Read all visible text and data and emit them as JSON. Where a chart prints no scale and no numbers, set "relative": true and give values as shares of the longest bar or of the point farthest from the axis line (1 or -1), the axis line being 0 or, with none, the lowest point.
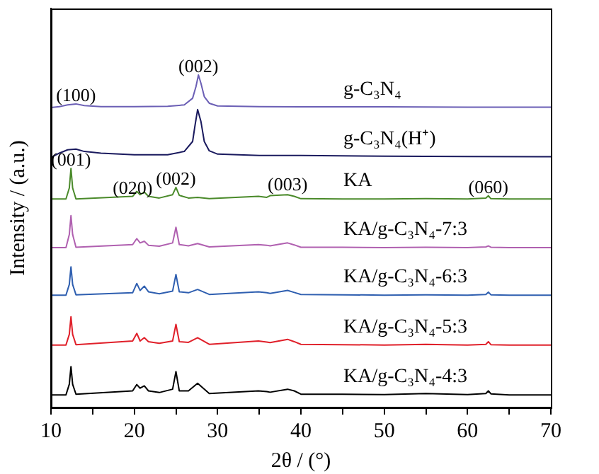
{
  "chart_data": {
    "type": "line",
    "xlabel": "2θ / (°)",
    "ylabel": "Intensity / (a.u.)",
    "relative": true,
    "marker": "none",
    "grid": false,
    "legend": false,
    "xlim": [
      10,
      70
    ],
    "xticks": [
      10,
      {
        "value": 15,
        "label": null
      },
      20,
      {
        "value": 25,
        "label": null
      },
      30,
      {
        "value": 35,
        "label": null
      },
      40,
      {
        "value": 45,
        "label": null
      },
      50,
      {
        "value": 55,
        "label": null
      },
      60,
      {
        "value": 65,
        "label": null
      },
      70
    ],
    "x": [
      10,
      11.8,
      12.2,
      12.4,
      12.6,
      13,
      19.8,
      20.3,
      20.7,
      21.2,
      21.7,
      23,
      24.6,
      25,
      25.4,
      26.5,
      27.6,
      29,
      34.9,
      35.9,
      36.3,
      38.4,
      39.2,
      40,
      45,
      50,
      55,
      60,
      62.2,
      62.5,
      62.8,
      65,
      70
    ],
    "series": [
      {
        "name": "g-C₃N₄",
        "color": "#6b5fb5",
        "x": [
          10,
          11,
          12,
          13,
          14,
          16,
          20,
          24,
          26,
          27,
          27.4,
          27.7,
          28,
          28.4,
          29,
          30,
          35,
          40,
          50,
          60,
          70
        ],
        "values": [
          0.902,
          0.905,
          0.91,
          0.913,
          0.908,
          0.905,
          0.905,
          0.906,
          0.91,
          0.93,
          0.965,
          1.0,
          0.975,
          0.935,
          0.915,
          0.907,
          0.905,
          0.904,
          0.904,
          0.903,
          0.903
        ]
      },
      {
        "name": "g-C₃N₄(H⁺)",
        "color": "#1a1a5e",
        "x": [
          10,
          11,
          12,
          13,
          14,
          16,
          20,
          24,
          26,
          27,
          27.3,
          27.6,
          28,
          28.4,
          29,
          30,
          35,
          40,
          50,
          60,
          70
        ],
        "values": [
          0.752,
          0.765,
          0.775,
          0.777,
          0.77,
          0.765,
          0.76,
          0.76,
          0.77,
          0.8,
          0.85,
          0.896,
          0.86,
          0.8,
          0.772,
          0.762,
          0.758,
          0.758,
          0.756,
          0.755,
          0.754
        ]
      },
      {
        "name": "KA",
        "color": "#4a8a2a",
        "values": [
          0.627,
          0.627,
          0.66,
          0.719,
          0.66,
          0.627,
          0.635,
          0.65,
          0.64,
          0.648,
          0.635,
          0.63,
          0.64,
          0.662,
          0.638,
          0.63,
          0.632,
          0.628,
          0.635,
          0.632,
          0.637,
          0.64,
          0.635,
          0.628,
          0.627,
          0.627,
          0.628,
          0.627,
          0.63,
          0.637,
          0.628,
          0.627,
          0.627
        ]
      },
      {
        "name": "KA/g-C₃N₄-7:3",
        "color": "#b060b0",
        "values": [
          0.481,
          0.481,
          0.52,
          0.577,
          0.52,
          0.482,
          0.49,
          0.508,
          0.495,
          0.5,
          0.488,
          0.485,
          0.495,
          0.542,
          0.49,
          0.486,
          0.493,
          0.483,
          0.49,
          0.488,
          0.486,
          0.495,
          0.489,
          0.482,
          0.482,
          0.481,
          0.482,
          0.481,
          0.483,
          0.486,
          0.482,
          0.481,
          0.481
        ]
      },
      {
        "name": "KA/g-C₃N₄-6:3",
        "color": "#2f5fb0",
        "values": [
          0.338,
          0.338,
          0.37,
          0.423,
          0.37,
          0.339,
          0.345,
          0.373,
          0.352,
          0.365,
          0.348,
          0.342,
          0.35,
          0.4,
          0.348,
          0.345,
          0.355,
          0.34,
          0.348,
          0.345,
          0.343,
          0.352,
          0.346,
          0.34,
          0.339,
          0.338,
          0.339,
          0.338,
          0.34,
          0.347,
          0.339,
          0.338,
          0.338
        ]
      },
      {
        "name": "KA/g-C₃N₄-5:3",
        "color": "#e0202a",
        "values": [
          0.188,
          0.188,
          0.22,
          0.273,
          0.22,
          0.189,
          0.2,
          0.223,
          0.2,
          0.21,
          0.198,
          0.193,
          0.2,
          0.25,
          0.198,
          0.196,
          0.21,
          0.19,
          0.2,
          0.197,
          0.195,
          0.205,
          0.198,
          0.19,
          0.189,
          0.188,
          0.19,
          0.188,
          0.19,
          0.198,
          0.189,
          0.188,
          0.188
        ]
      },
      {
        "name": "KA/g-C₃N₄-4:3",
        "color": "#000000",
        "values": [
          0.038,
          0.038,
          0.07,
          0.123,
          0.07,
          0.04,
          0.05,
          0.069,
          0.058,
          0.065,
          0.05,
          0.045,
          0.055,
          0.108,
          0.05,
          0.05,
          0.073,
          0.042,
          0.05,
          0.048,
          0.046,
          0.055,
          0.05,
          0.04,
          0.04,
          0.039,
          0.042,
          0.039,
          0.042,
          0.05,
          0.041,
          0.038,
          0.038
        ]
      }
    ],
    "annotations": [
      {
        "text": "(100)",
        "x": 13,
        "y": 0.913
      },
      {
        "text": "(002)",
        "x": 27.7,
        "y": 1.0
      },
      {
        "text": "(001)",
        "x": 12.4,
        "y": 0.719
      },
      {
        "text": "(020)",
        "x": 19.8,
        "y": 0.635
      },
      {
        "text": "(002)",
        "x": 25,
        "y": 0.662
      },
      {
        "text": "(003)",
        "x": 38.4,
        "y": 0.645
      },
      {
        "text": "(060)",
        "x": 62.5,
        "y": 0.637
      }
    ]
  }
}
